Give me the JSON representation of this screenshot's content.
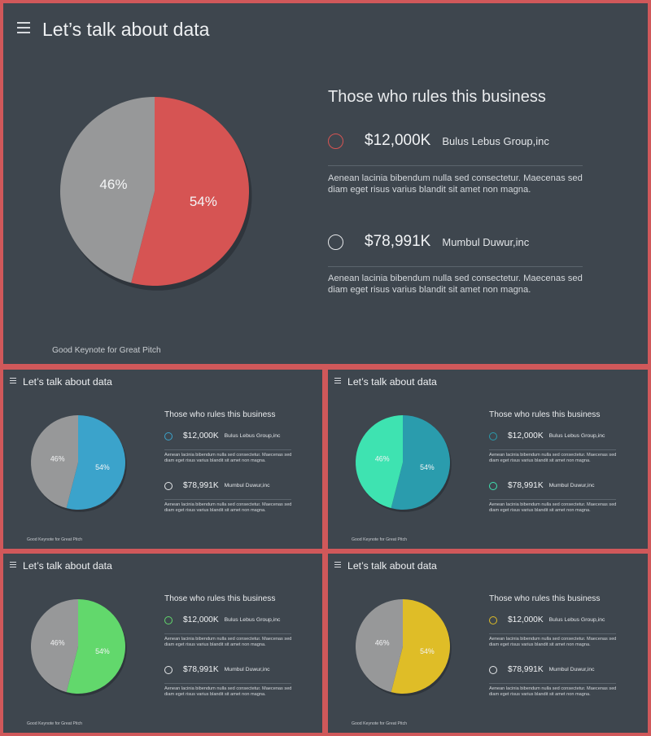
{
  "slides": [
    {
      "title": "Let’s talk about data",
      "heading": "Those who rules this business",
      "chart_data": {
        "type": "pie",
        "labels": [
          "54%",
          "46%"
        ],
        "values": [
          54,
          46
        ],
        "colors": [
          "#d65453",
          "#979899"
        ]
      },
      "entries": [
        {
          "amount": "$12,000K",
          "company": "Bulus Lebus Group,inc",
          "ring_color": "#d65453",
          "description": "Aenean lacinia bibendum nulla sed consectetur. Maecenas sed diam eget risus varius blandit sit amet non magna."
        },
        {
          "amount": "$78,991K",
          "company": "Mumbul Duwur,inc",
          "ring_color": "#e6e8ea",
          "description": "Aenean lacinia bibendum nulla sed consectetur. Maecenas sed diam eget risus varius blandit sit amet non magna."
        }
      ],
      "footer": "Good Keynote for Great Pitch"
    },
    {
      "title": "Let’s talk about data",
      "heading": "Those who rules this business",
      "chart_data": {
        "type": "pie",
        "labels": [
          "54%",
          "46%"
        ],
        "values": [
          54,
          46
        ],
        "colors": [
          "#3ba3cb",
          "#979899"
        ]
      },
      "entries": [
        {
          "amount": "$12,000K",
          "company": "Bulus Lebus Group,inc",
          "ring_color": "#3ba3cb",
          "description": "Aenean lacinia bibendum nulla sed consectetur. Maecenas sed diam eget risus varius blandit sit amet non magna."
        },
        {
          "amount": "$78,991K",
          "company": "Mumbul Duwur,inc",
          "ring_color": "#e6e8ea",
          "description": "Aenean lacinia bibendum nulla sed consectetur. Maecenas sed diam eget risus varius blandit sit amet non magna."
        }
      ],
      "footer": "Good Keynote for Great Pitch"
    },
    {
      "title": "Let’s talk about data",
      "heading": "Those who rules this business",
      "chart_data": {
        "type": "pie",
        "labels": [
          "54%",
          "46%"
        ],
        "values": [
          54,
          46
        ],
        "colors": [
          "#2a9cad",
          "#3ee3b1"
        ]
      },
      "entries": [
        {
          "amount": "$12,000K",
          "company": "Bulus Lebus Group,inc",
          "ring_color": "#2a9cad",
          "description": "Aenean lacinia bibendum nulla sed consectetur. Maecenas sed diam eget risus varius blandit sit amet non magna."
        },
        {
          "amount": "$78,991K",
          "company": "Mumbul Duwur,inc",
          "ring_color": "#3ee3b1",
          "description": "Aenean lacinia bibendum nulla sed consectetur. Maecenas sed diam eget risus varius blandit sit amet non magna."
        }
      ],
      "footer": "Good Keynote for Great Pitch"
    },
    {
      "title": "Let’s talk about data",
      "heading": "Those who rules this business",
      "chart_data": {
        "type": "pie",
        "labels": [
          "54%",
          "46%"
        ],
        "values": [
          54,
          46
        ],
        "colors": [
          "#62d86c",
          "#979899"
        ]
      },
      "entries": [
        {
          "amount": "$12,000K",
          "company": "Bulus Lebus Group,inc",
          "ring_color": "#62d86c",
          "description": "Aenean lacinia bibendum nulla sed consectetur. Maecenas sed diam eget risus varius blandit sit amet non magna."
        },
        {
          "amount": "$78,991K",
          "company": "Mumbul Duwur,inc",
          "ring_color": "#e6e8ea",
          "description": "Aenean lacinia bibendum nulla sed consectetur. Maecenas sed diam eget risus varius blandit sit amet non magna."
        }
      ],
      "footer": "Good Keynote for Great Pitch"
    },
    {
      "title": "Let’s talk about data",
      "heading": "Those who rules this business",
      "chart_data": {
        "type": "pie",
        "labels": [
          "54%",
          "46%"
        ],
        "values": [
          54,
          46
        ],
        "colors": [
          "#dfbd27",
          "#979899"
        ]
      },
      "entries": [
        {
          "amount": "$12,000K",
          "company": "Bulus Lebus Group,inc",
          "ring_color": "#dfbd27",
          "description": "Aenean lacinia bibendum nulla sed consectetur. Maecenas sed diam eget risus varius blandit sit amet non magna."
        },
        {
          "amount": "$78,991K",
          "company": "Mumbul Duwur,inc",
          "ring_color": "#e6e8ea",
          "description": "Aenean lacinia bibendum nulla sed consectetur. Maecenas sed diam eget risus varius blandit sit amet non magna."
        }
      ],
      "footer": "Good Keynote for Great Pitch"
    }
  ]
}
